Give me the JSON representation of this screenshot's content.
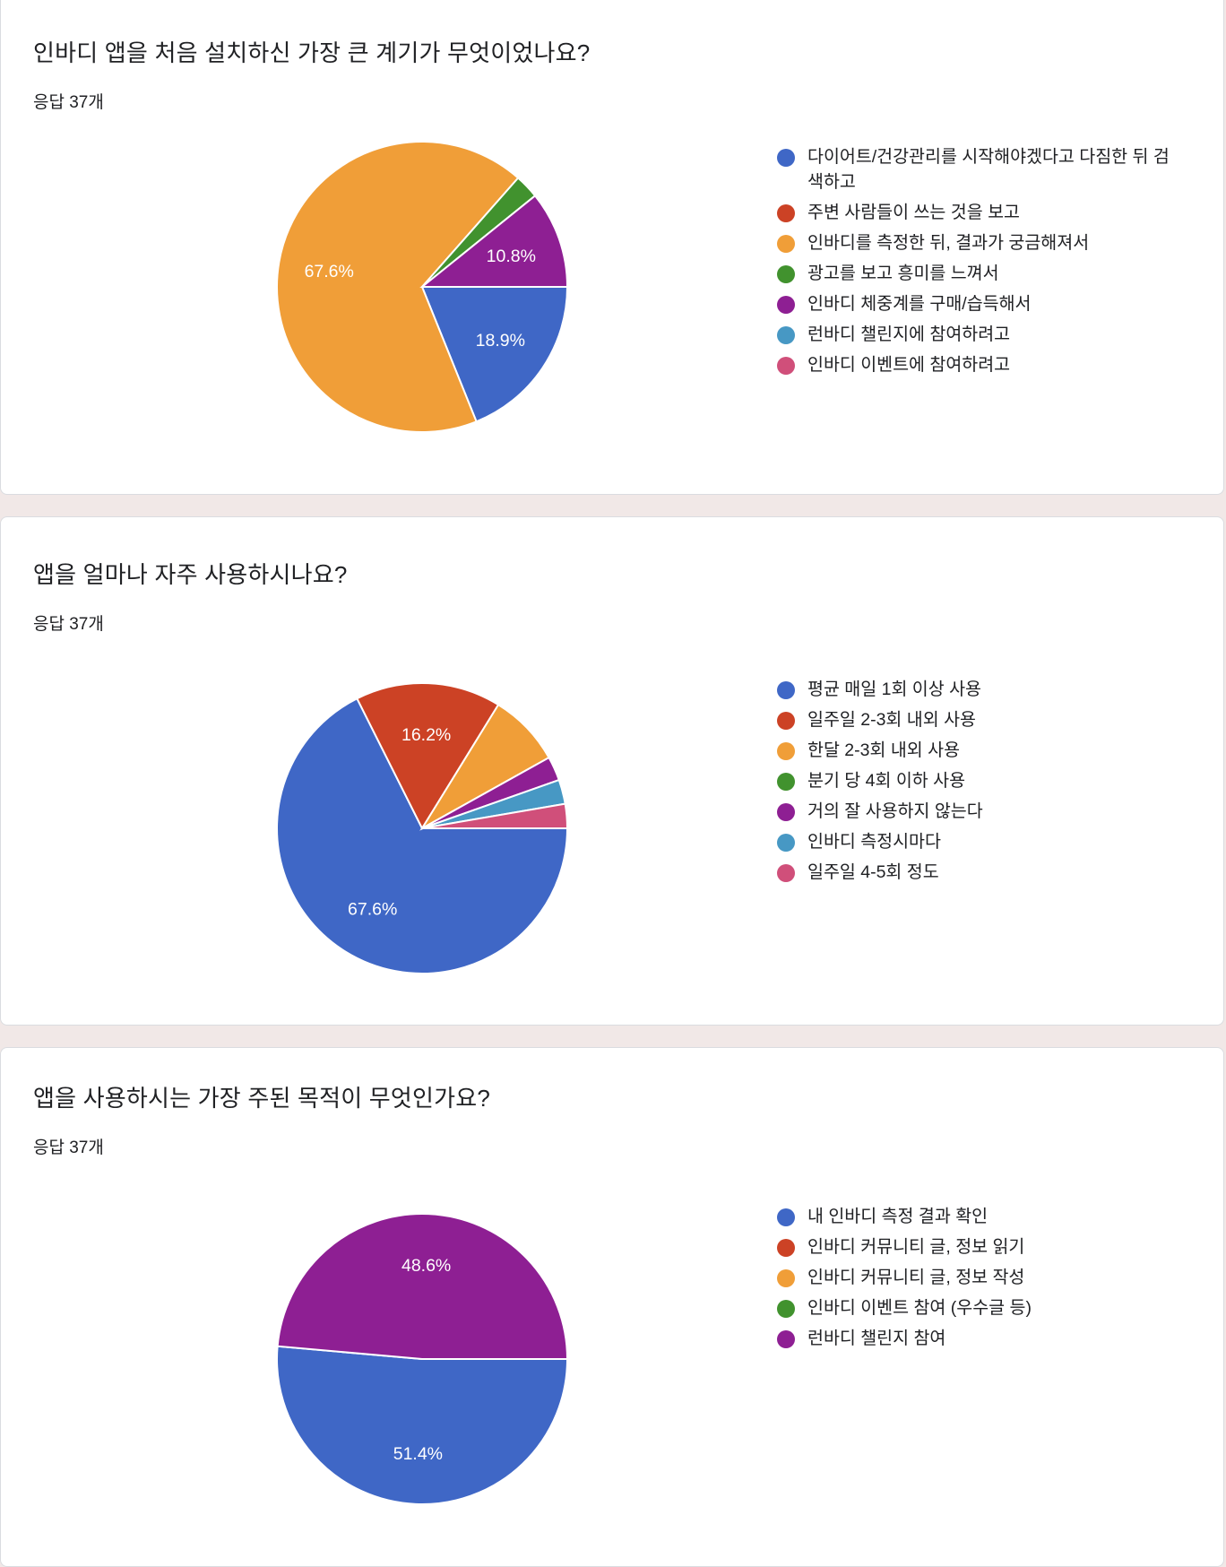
{
  "colors": {
    "blue": "#3f67c6",
    "red": "#cc4225",
    "orange": "#f09e38",
    "green": "#41922e",
    "purple": "#8e1f93",
    "teal": "#4798c4",
    "pink": "#d04f7a"
  },
  "questions": [
    {
      "title": "인바디 앱을 처음 설치하신 가장 큰 계기가 무엇이었나요?",
      "count": "응답 37개"
    },
    {
      "title": "앱을 얼마나 자주 사용하시나요?",
      "count": "응답 37개"
    },
    {
      "title": "앱을 사용하시는 가장 주된 목적이 무엇인가요?",
      "count": "응답 37개"
    }
  ],
  "chart_data": [
    {
      "type": "pie",
      "title": "인바디 앱을 처음 설치하신 가장 큰 계기가 무엇이었나요?",
      "legend_position": "right",
      "series": [
        {
          "label": "다이어트/건강관리를 시작해야겠다고 다짐한 뒤 검색하고",
          "value": 18.9,
          "display": "18.9%",
          "color": "#3f67c6"
        },
        {
          "label": "주변 사람들이 쓰는 것을 보고",
          "value": 0,
          "display": "",
          "color": "#cc4225"
        },
        {
          "label": "인바디를 측정한 뒤, 결과가 궁금해져서",
          "value": 67.6,
          "display": "67.6%",
          "color": "#f09e38"
        },
        {
          "label": "광고를 보고 흥미를 느껴서",
          "value": 2.7,
          "display": "",
          "color": "#41922e"
        },
        {
          "label": "인바디 체중계를 구매/습득해서",
          "value": 10.8,
          "display": "10.8%",
          "color": "#8e1f93"
        },
        {
          "label": "런바디 챌린지에 참여하려고",
          "value": 0,
          "display": "",
          "color": "#4798c4"
        },
        {
          "label": "인바디 이벤트에 참여하려고",
          "value": 0,
          "display": "",
          "color": "#d04f7a"
        }
      ]
    },
    {
      "type": "pie",
      "title": "앱을 얼마나 자주 사용하시나요?",
      "legend_position": "right",
      "series": [
        {
          "label": "평균 매일 1회 이상 사용",
          "value": 67.6,
          "display": "67.6%",
          "color": "#3f67c6"
        },
        {
          "label": "일주일 2-3회 내외 사용",
          "value": 16.2,
          "display": "16.2%",
          "color": "#cc4225"
        },
        {
          "label": "한달 2-3회 내외 사용",
          "value": 8.1,
          "display": "",
          "color": "#f09e38"
        },
        {
          "label": "분기 당 4회 이하 사용",
          "value": 0,
          "display": "",
          "color": "#41922e"
        },
        {
          "label": "거의 잘 사용하지 않는다",
          "value": 2.7,
          "display": "",
          "color": "#8e1f93"
        },
        {
          "label": "인바디 측정시마다",
          "value": 2.7,
          "display": "",
          "color": "#4798c4"
        },
        {
          "label": "일주일 4-5회 정도",
          "value": 2.7,
          "display": "",
          "color": "#d04f7a"
        }
      ]
    },
    {
      "type": "pie",
      "title": "앱을 사용하시는 가장 주된 목적이 무엇인가요?",
      "legend_position": "right",
      "series": [
        {
          "label": "내 인바디 측정 결과 확인",
          "value": 51.4,
          "display": "51.4%",
          "color": "#3f67c6"
        },
        {
          "label": "인바디 커뮤니티 글, 정보 읽기",
          "value": 0,
          "display": "",
          "color": "#cc4225"
        },
        {
          "label": "인바디 커뮤니티 글, 정보 작성",
          "value": 0,
          "display": "",
          "color": "#f09e38"
        },
        {
          "label": "인바디 이벤트 참여 (우수글 등)",
          "value": 0,
          "display": "",
          "color": "#41922e"
        },
        {
          "label": "런바디 챌린지 참여",
          "value": 48.6,
          "display": "48.6%",
          "color": "#8e1f93"
        }
      ]
    }
  ]
}
